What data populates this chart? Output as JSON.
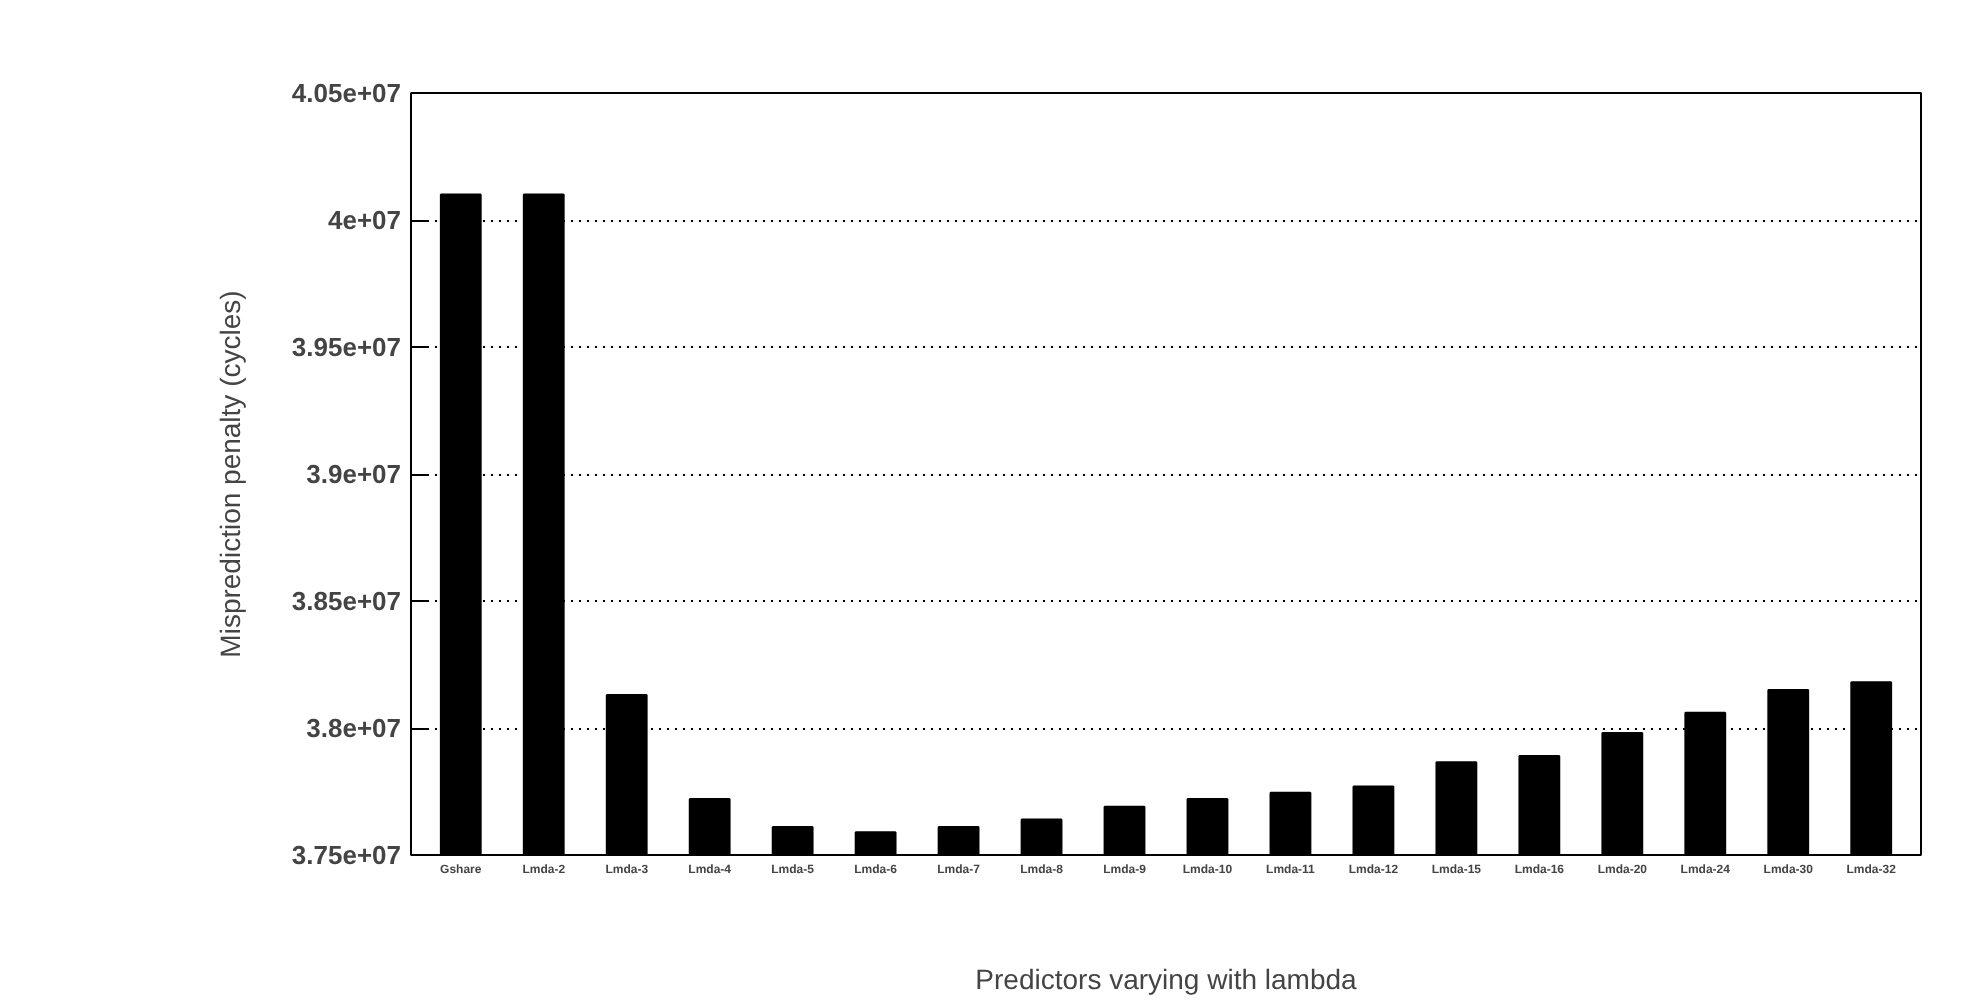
{
  "chart_data": {
    "type": "bar",
    "xlabel": "Predictors varying with lambda",
    "ylabel": "Misprediction penalty (cycles)",
    "categories": [
      "Gshare",
      "Lmda-2",
      "Lmda-3",
      "Lmda-4",
      "Lmda-5",
      "Lmda-6",
      "Lmda-7",
      "Lmda-8",
      "Lmda-9",
      "Lmda-10",
      "Lmda-11",
      "Lmda-12",
      "Lmda-15",
      "Lmda-16",
      "Lmda-20",
      "Lmda-24",
      "Lmda-30",
      "Lmda-32"
    ],
    "values": [
      40100000,
      40100000,
      38130000,
      37720000,
      37610000,
      37590000,
      37610000,
      37640000,
      37690000,
      37720000,
      37745000,
      37770000,
      37865000,
      37890000,
      37980000,
      38060000,
      38150000,
      38180000
    ],
    "color": "#000000",
    "ylim": [
      37500000,
      40500000
    ],
    "yticks": [
      {
        "value": 37500000,
        "label": "3.75e+07"
      },
      {
        "value": 38000000,
        "label": "3.8e+07"
      },
      {
        "value": 38500000,
        "label": "3.85e+07"
      },
      {
        "value": 39000000,
        "label": "3.9e+07"
      },
      {
        "value": 39500000,
        "label": "3.95e+07"
      },
      {
        "value": 40000000,
        "label": "4e+07"
      },
      {
        "value": 40500000,
        "label": "4.05e+07"
      }
    ],
    "grid": "y"
  }
}
